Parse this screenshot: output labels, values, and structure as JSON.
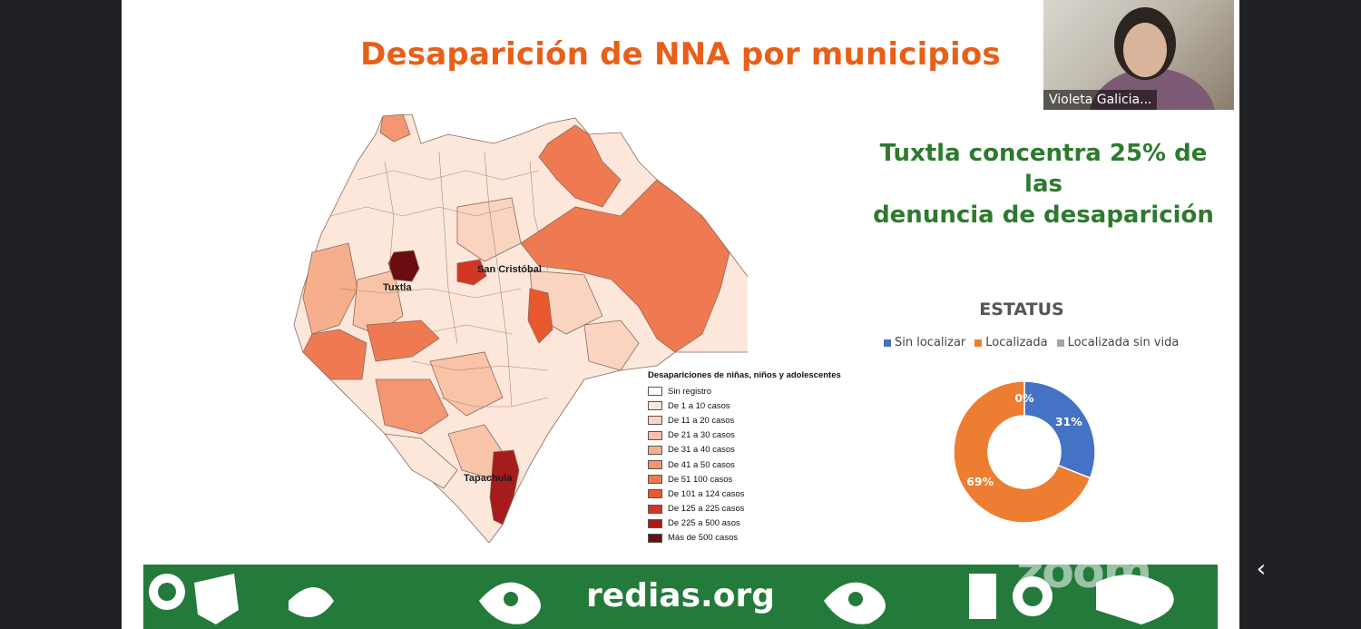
{
  "slide": {
    "title": "Desaparición de NNA por municipios",
    "headline_lines": [
      "Tuxtla concentra 25% de las",
      "denuncia de desaparición"
    ],
    "map": {
      "labels": [
        "Tuxtla",
        "San Cristóbal",
        "Tapachula"
      ],
      "legend": {
        "title": "Desapariciones de niñas, niños y adolescentes",
        "items": [
          {
            "label": "Sin registro",
            "color": "#ffffff"
          },
          {
            "label": "De 1 a 10 casos",
            "color": "#fde6da"
          },
          {
            "label": "De 11 a 20 casos",
            "color": "#fbd4c1"
          },
          {
            "label": "De 21 a 30 casos",
            "color": "#f9c3a8"
          },
          {
            "label": "De 31 a 40 casos",
            "color": "#f6ae8c"
          },
          {
            "label": "De 41 a 50 casos",
            "color": "#f39671"
          },
          {
            "label": "De 51  100 casos",
            "color": "#ef7a52"
          },
          {
            "label": "De 101 a 124 casos",
            "color": "#e8582f"
          },
          {
            "label": "De 125 a 225 casos",
            "color": "#d33624"
          },
          {
            "label": "De 225 a 500 asos",
            "color": "#a61c1c"
          },
          {
            "label": "Más de 500 casos",
            "color": "#6a0c10"
          }
        ]
      }
    },
    "chart_data": {
      "type": "pie",
      "title": "ESTATUS",
      "series": [
        {
          "name": "Sin localizar",
          "value": 31,
          "label": "31%",
          "color": "#4472c4"
        },
        {
          "name": "Localizada",
          "value": 69,
          "label": "69%",
          "color": "#ed7d31"
        },
        {
          "name": "Localizada sin vida",
          "value": 0,
          "label": "0%",
          "color": "#a5a5a5"
        }
      ],
      "legend_position": "top"
    },
    "banner": {
      "text": "redias.org",
      "color": "#237a3b"
    }
  },
  "video": {
    "participant_name": "Violeta Galicia..."
  },
  "watermark": "zoom",
  "nav": {
    "icon": "chevron-left-icon",
    "glyph": "‹"
  }
}
